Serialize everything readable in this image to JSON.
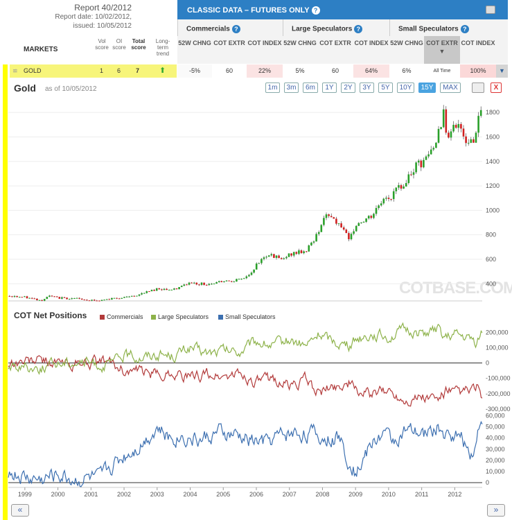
{
  "report": {
    "title": "Report 40/2012",
    "report_date": "Report date:  10/02/2012,",
    "issued": "issued:  10/05/2012"
  },
  "table": {
    "markets_label": "MARKETS",
    "col_vol": "Vol score",
    "col_oi": "OI score",
    "col_total": "Total score",
    "col_trend": "Long-term trend",
    "classic_label": "CLASSIC DATA – FUTURES ONLY",
    "groups": [
      "Commercials",
      "Large Speculators",
      "Small Speculators"
    ],
    "sub_headers": [
      "52W CHNG",
      "COT EXTR",
      "COT INDEX"
    ],
    "row": {
      "name": "GOLD",
      "vol": "1",
      "oi": "6",
      "total": "7",
      "trend_icon": "arrow-up-icon",
      "values": [
        "-5%",
        "60",
        "22%",
        "5%",
        "60",
        "64%",
        "6%",
        "All Time",
        "100%"
      ]
    }
  },
  "chart_header": {
    "title": "Gold",
    "as_of": "as of 10/05/2012",
    "ranges": [
      "1m",
      "3m",
      "6m",
      "1Y",
      "2Y",
      "3Y",
      "5Y",
      "10Y",
      "15Y",
      "MAX"
    ],
    "active_range": "15Y",
    "close_label": "X"
  },
  "cot_section": {
    "title": "COT Net Positions",
    "legend": [
      "Commercials",
      "Large Speculators",
      "Small Speculators"
    ]
  },
  "watermark": "COTBASE.COM",
  "nav": {
    "prev": "«",
    "next": "»"
  },
  "colors": {
    "commercials": "#b23a3a",
    "large_speculators": "#8db24a",
    "small_speculators": "#3c6fb0",
    "up": "#2aa02a",
    "down": "#d02020",
    "accent": "#2d7fc4"
  },
  "chart_data": [
    {
      "type": "candlestick",
      "title": "Gold",
      "x_start": 1998.5,
      "x_end": 2012.83,
      "ylim": [
        260,
        1920
      ],
      "yticks": [
        400,
        600,
        800,
        1000,
        1200,
        1400,
        1600,
        1800
      ],
      "xticks": [
        "1999",
        "2000",
        "2001",
        "2002",
        "2003",
        "2004",
        "2005",
        "2006",
        "2007",
        "2008",
        "2009",
        "2010",
        "2011",
        "2012"
      ],
      "close_anchors": [
        [
          1998.5,
          300
        ],
        [
          1999.0,
          290
        ],
        [
          1999.5,
          265
        ],
        [
          1999.75,
          300
        ],
        [
          2000.0,
          285
        ],
        [
          2000.5,
          280
        ],
        [
          2001.0,
          265
        ],
        [
          2001.25,
          260
        ],
        [
          2001.75,
          285
        ],
        [
          2002.0,
          285
        ],
        [
          2002.5,
          315
        ],
        [
          2003.0,
          360
        ],
        [
          2003.5,
          350
        ],
        [
          2004.0,
          410
        ],
        [
          2004.5,
          395
        ],
        [
          2005.0,
          425
        ],
        [
          2005.5,
          430
        ],
        [
          2005.9,
          495
        ],
        [
          2006.0,
          560
        ],
        [
          2006.4,
          650
        ],
        [
          2006.75,
          590
        ],
        [
          2007.0,
          640
        ],
        [
          2007.5,
          670
        ],
        [
          2007.8,
          780
        ],
        [
          2008.0,
          920
        ],
        [
          2008.2,
          960
        ],
        [
          2008.6,
          870
        ],
        [
          2008.8,
          740
        ],
        [
          2009.0,
          880
        ],
        [
          2009.5,
          950
        ],
        [
          2009.9,
          1120
        ],
        [
          2010.0,
          1100
        ],
        [
          2010.5,
          1230
        ],
        [
          2010.9,
          1380
        ],
        [
          2011.0,
          1360
        ],
        [
          2011.4,
          1530
        ],
        [
          2011.67,
          1800
        ],
        [
          2011.75,
          1620
        ],
        [
          2012.0,
          1700
        ],
        [
          2012.4,
          1560
        ],
        [
          2012.6,
          1600
        ],
        [
          2012.75,
          1780
        ],
        [
          2012.83,
          1775
        ]
      ]
    },
    {
      "type": "line",
      "title": "COT Net Positions",
      "ylim": [
        -305000,
        242000
      ],
      "yticks": [
        200000,
        100000,
        0,
        -100000,
        -200000,
        -300000
      ],
      "series": [
        {
          "name": "Commercials",
          "anchors": [
            [
              1998.5,
              0
            ],
            [
              1999.0,
              10000
            ],
            [
              1999.5,
              20000
            ],
            [
              2000.0,
              0
            ],
            [
              2000.5,
              -10000
            ],
            [
              2001.0,
              0
            ],
            [
              2001.5,
              10000
            ],
            [
              2002.0,
              -50000
            ],
            [
              2002.5,
              -60000
            ],
            [
              2003.0,
              -80000
            ],
            [
              2003.5,
              -60000
            ],
            [
              2004.0,
              -100000
            ],
            [
              2004.5,
              -70000
            ],
            [
              2005.0,
              -90000
            ],
            [
              2005.5,
              -70000
            ],
            [
              2006.0,
              -130000
            ],
            [
              2006.5,
              -100000
            ],
            [
              2007.0,
              -150000
            ],
            [
              2007.5,
              -110000
            ],
            [
              2007.9,
              -200000
            ],
            [
              2008.3,
              -160000
            ],
            [
              2008.8,
              -130000
            ],
            [
              2009.0,
              -180000
            ],
            [
              2009.5,
              -210000
            ],
            [
              2010.0,
              -180000
            ],
            [
              2010.5,
              -240000
            ],
            [
              2011.0,
              -220000
            ],
            [
              2011.5,
              -240000
            ],
            [
              2011.75,
              -180000
            ],
            [
              2012.0,
              -200000
            ],
            [
              2012.5,
              -180000
            ],
            [
              2012.67,
              -150000
            ],
            [
              2012.83,
              -250000
            ]
          ]
        },
        {
          "name": "Large Speculators",
          "anchors": [
            [
              1998.5,
              -30000
            ],
            [
              1999.0,
              -20000
            ],
            [
              1999.5,
              -30000
            ],
            [
              2000.0,
              0
            ],
            [
              2000.5,
              10000
            ],
            [
              2001.0,
              0
            ],
            [
              2001.5,
              -20000
            ],
            [
              2002.0,
              50000
            ],
            [
              2002.5,
              40000
            ],
            [
              2003.0,
              60000
            ],
            [
              2003.5,
              50000
            ],
            [
              2004.0,
              100000
            ],
            [
              2004.5,
              60000
            ],
            [
              2005.0,
              80000
            ],
            [
              2005.5,
              70000
            ],
            [
              2006.0,
              140000
            ],
            [
              2006.5,
              110000
            ],
            [
              2007.0,
              150000
            ],
            [
              2007.5,
              110000
            ],
            [
              2007.9,
              190000
            ],
            [
              2008.3,
              150000
            ],
            [
              2008.8,
              110000
            ],
            [
              2009.0,
              160000
            ],
            [
              2009.5,
              190000
            ],
            [
              2010.0,
              170000
            ],
            [
              2010.5,
              210000
            ],
            [
              2011.0,
              200000
            ],
            [
              2011.5,
              210000
            ],
            [
              2011.75,
              160000
            ],
            [
              2012.0,
              180000
            ],
            [
              2012.5,
              150000
            ],
            [
              2012.67,
              130000
            ],
            [
              2012.83,
              210000
            ]
          ]
        }
      ]
    },
    {
      "type": "line",
      "ylim": [
        -3000,
        64000
      ],
      "yticks": [
        60000,
        50000,
        40000,
        30000,
        20000,
        10000,
        0
      ],
      "series": [
        {
          "name": "Small Speculators",
          "anchors": [
            [
              1998.5,
              10000
            ],
            [
              1999.0,
              5000
            ],
            [
              1999.5,
              3000
            ],
            [
              2000.0,
              8000
            ],
            [
              2000.5,
              3000
            ],
            [
              2001.0,
              5000
            ],
            [
              2001.25,
              2000
            ],
            [
              2001.5,
              12000
            ],
            [
              2002.0,
              25000
            ],
            [
              2002.5,
              35000
            ],
            [
              2003.0,
              50000
            ],
            [
              2003.3,
              40000
            ],
            [
              2003.8,
              42000
            ],
            [
              2004.3,
              38000
            ],
            [
              2004.8,
              44000
            ],
            [
              2005.3,
              42000
            ],
            [
              2005.8,
              38000
            ],
            [
              2006.3,
              36000
            ],
            [
              2006.7,
              42000
            ],
            [
              2007.0,
              44000
            ],
            [
              2007.5,
              45000
            ],
            [
              2008.0,
              40000
            ],
            [
              2008.5,
              40000
            ],
            [
              2008.9,
              15000
            ],
            [
              2009.0,
              10000
            ],
            [
              2009.5,
              35000
            ],
            [
              2009.8,
              45000
            ],
            [
              2010.1,
              38000
            ],
            [
              2010.5,
              45000
            ],
            [
              2011.0,
              42000
            ],
            [
              2011.5,
              50000
            ],
            [
              2011.8,
              40000
            ],
            [
              2012.0,
              45000
            ],
            [
              2012.3,
              35000
            ],
            [
              2012.5,
              28000
            ],
            [
              2012.65,
              35000
            ],
            [
              2012.75,
              55000
            ],
            [
              2012.83,
              60000
            ]
          ]
        }
      ]
    }
  ]
}
